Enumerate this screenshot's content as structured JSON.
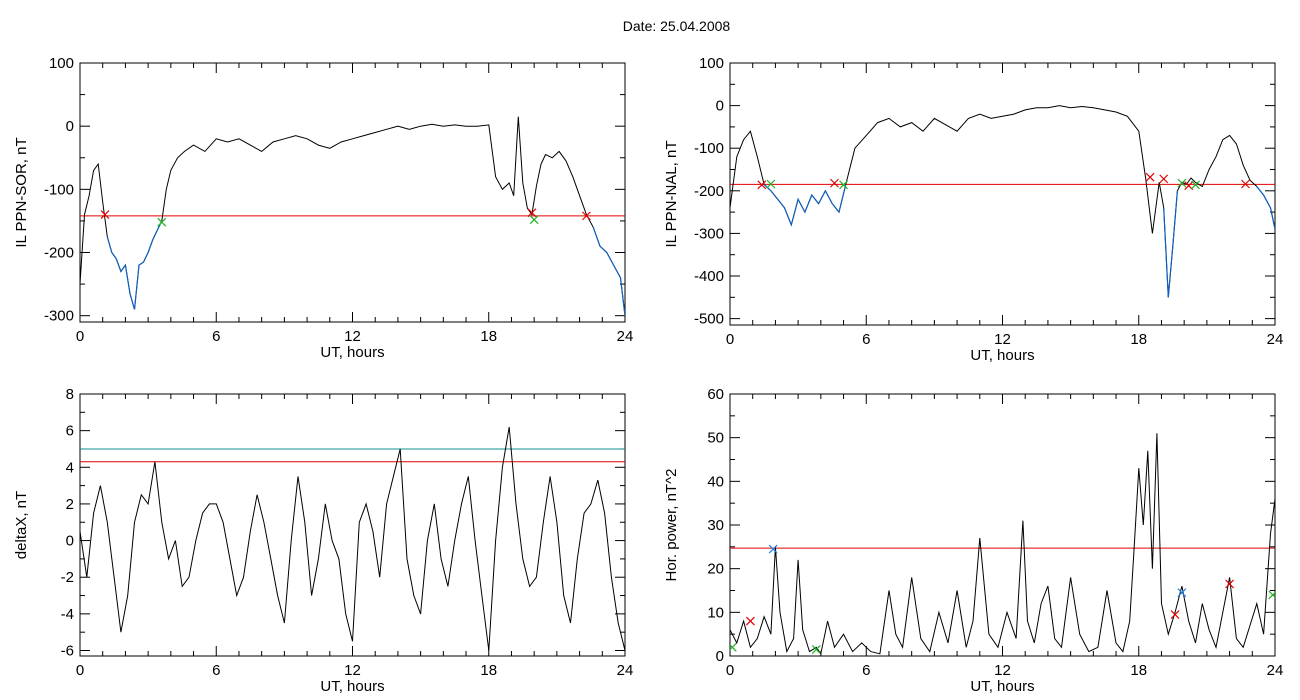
{
  "title": "Date:  25.04.2008",
  "colors": {
    "trace": "#000000",
    "below_threshold": "#1060c0",
    "threshold": "#e00000",
    "upper_threshold": "#109090",
    "mark_red": "#e00000",
    "mark_green": "#20b020",
    "mark_blue": "#2080e0"
  },
  "chart_data": [
    {
      "id": "il-sor",
      "type": "line",
      "xlabel": "UT, hours",
      "ylabel": "IL PPN-SOR, nT",
      "xlim": [
        0,
        24
      ],
      "ylim": [
        -310,
        100
      ],
      "xticks": [
        0,
        6,
        12,
        18,
        24
      ],
      "yticks": [
        -300,
        -200,
        -100,
        0,
        100
      ],
      "threshold": -142,
      "series": [
        {
          "x": [
            0,
            0.2,
            0.4,
            0.6,
            0.8,
            1.0,
            1.2,
            1.4,
            1.6,
            1.8,
            2.0,
            2.2,
            2.4,
            2.6,
            2.8,
            3.0,
            3.2,
            3.4,
            3.6,
            3.8,
            4.0,
            4.3,
            4.6,
            5.0,
            5.5,
            6.0,
            6.5,
            7.0,
            7.5,
            8.0,
            8.5,
            9.0,
            9.5,
            10.0,
            10.5,
            11.0,
            11.5,
            12.0,
            12.5,
            13.0,
            13.5,
            14.0,
            14.5,
            15.0,
            15.5,
            16.0,
            16.5,
            17.0,
            17.5,
            18.0,
            18.3,
            18.6,
            18.9,
            19.1,
            19.3,
            19.5,
            19.7,
            19.9,
            20.1,
            20.3,
            20.5,
            20.8,
            21.1,
            21.4,
            21.7,
            22.0,
            22.3,
            22.6,
            22.9,
            23.2,
            23.5,
            23.8,
            24.0
          ],
          "y": [
            -250,
            -140,
            -110,
            -70,
            -60,
            -120,
            -175,
            -200,
            -210,
            -230,
            -220,
            -265,
            -290,
            -220,
            -215,
            -200,
            -180,
            -165,
            -150,
            -100,
            -70,
            -50,
            -40,
            -30,
            -40,
            -20,
            -25,
            -20,
            -30,
            -40,
            -25,
            -20,
            -15,
            -20,
            -30,
            -35,
            -25,
            -20,
            -15,
            -10,
            -5,
            0,
            -5,
            0,
            3,
            0,
            2,
            0,
            0,
            2,
            -80,
            -100,
            -90,
            -110,
            15,
            -90,
            -130,
            -140,
            -95,
            -60,
            -45,
            -50,
            -40,
            -55,
            -80,
            -110,
            -140,
            -160,
            -190,
            -200,
            -220,
            -240,
            -300
          ]
        }
      ],
      "marks": [
        {
          "x": 1.1,
          "y": -140,
          "color": "red"
        },
        {
          "x": 3.6,
          "y": -152,
          "color": "green"
        },
        {
          "x": 19.9,
          "y": -137,
          "color": "red"
        },
        {
          "x": 20.0,
          "y": -148,
          "color": "green"
        },
        {
          "x": 22.3,
          "y": -142,
          "color": "red"
        }
      ]
    },
    {
      "id": "il-nal",
      "type": "line",
      "xlabel": "UT, hours",
      "ylabel": "IL PPN-NAL, nT",
      "xlim": [
        0,
        24
      ],
      "ylim": [
        -515,
        100
      ],
      "xticks": [
        0,
        6,
        12,
        18,
        24
      ],
      "yticks": [
        -500,
        -400,
        -300,
        -200,
        -100,
        0,
        100
      ],
      "threshold": -185,
      "series": [
        {
          "x": [
            0,
            0.3,
            0.6,
            0.9,
            1.2,
            1.5,
            1.8,
            2.1,
            2.4,
            2.7,
            3.0,
            3.3,
            3.6,
            3.9,
            4.2,
            4.5,
            4.8,
            5.1,
            5.5,
            6.0,
            6.5,
            7.0,
            7.5,
            8.0,
            8.5,
            9.0,
            9.5,
            10.0,
            10.5,
            11.0,
            11.5,
            12.0,
            12.5,
            13.0,
            13.5,
            14.0,
            14.5,
            15.0,
            15.5,
            16.0,
            16.5,
            17.0,
            17.5,
            18.0,
            18.3,
            18.6,
            18.9,
            19.1,
            19.3,
            19.5,
            19.7,
            19.9,
            20.1,
            20.3,
            20.5,
            20.8,
            21.1,
            21.4,
            21.7,
            22.0,
            22.3,
            22.6,
            22.9,
            23.2,
            23.5,
            23.8,
            24.0
          ],
          "y": [
            -240,
            -120,
            -80,
            -60,
            -120,
            -185,
            -200,
            -220,
            -240,
            -280,
            -220,
            -250,
            -210,
            -230,
            -200,
            -230,
            -250,
            -185,
            -100,
            -70,
            -40,
            -30,
            -50,
            -40,
            -60,
            -30,
            -45,
            -60,
            -30,
            -20,
            -30,
            -25,
            -20,
            -10,
            -5,
            -5,
            0,
            -5,
            -2,
            -5,
            -10,
            -15,
            -25,
            -60,
            -170,
            -300,
            -180,
            -240,
            -450,
            -330,
            -200,
            -180,
            -185,
            -170,
            -180,
            -190,
            -150,
            -120,
            -80,
            -70,
            -90,
            -140,
            -175,
            -190,
            -210,
            -240,
            -290
          ]
        }
      ],
      "marks": [
        {
          "x": 1.4,
          "y": -186,
          "color": "red"
        },
        {
          "x": 1.8,
          "y": -184,
          "color": "green"
        },
        {
          "x": 4.6,
          "y": -182,
          "color": "red"
        },
        {
          "x": 5.0,
          "y": -186,
          "color": "green"
        },
        {
          "x": 18.5,
          "y": -168,
          "color": "red"
        },
        {
          "x": 19.1,
          "y": -172,
          "color": "red"
        },
        {
          "x": 19.9,
          "y": -182,
          "color": "green"
        },
        {
          "x": 20.2,
          "y": -188,
          "color": "red"
        },
        {
          "x": 20.5,
          "y": -186,
          "color": "green"
        },
        {
          "x": 22.7,
          "y": -184,
          "color": "red"
        }
      ]
    },
    {
      "id": "deltax",
      "type": "line",
      "xlabel": "UT, hours",
      "ylabel": "deltaX, nT",
      "xlim": [
        0,
        24
      ],
      "ylim": [
        -6.3,
        8
      ],
      "xticks": [
        0,
        6,
        12,
        18,
        24
      ],
      "yticks": [
        -6,
        -4,
        -2,
        0,
        2,
        4,
        6,
        8
      ],
      "threshold": 4.3,
      "threshold_upper": 5.0,
      "series": [
        {
          "x": [
            0,
            0.3,
            0.6,
            0.9,
            1.2,
            1.5,
            1.8,
            2.1,
            2.4,
            2.7,
            3.0,
            3.3,
            3.6,
            3.9,
            4.2,
            4.5,
            4.8,
            5.1,
            5.4,
            5.7,
            6.0,
            6.3,
            6.6,
            6.9,
            7.2,
            7.5,
            7.8,
            8.1,
            8.4,
            8.7,
            9.0,
            9.3,
            9.6,
            9.9,
            10.2,
            10.5,
            10.8,
            11.1,
            11.4,
            11.7,
            12.0,
            12.3,
            12.6,
            12.9,
            13.2,
            13.5,
            13.8,
            14.1,
            14.4,
            14.7,
            15.0,
            15.3,
            15.6,
            15.9,
            16.2,
            16.5,
            16.8,
            17.1,
            17.4,
            17.7,
            18.0,
            18.3,
            18.6,
            18.9,
            19.2,
            19.5,
            19.8,
            20.1,
            20.4,
            20.7,
            21.0,
            21.3,
            21.6,
            21.9,
            22.2,
            22.5,
            22.8,
            23.1,
            23.4,
            23.7,
            24.0
          ],
          "y": [
            0.5,
            -2,
            1.5,
            3,
            1,
            -2,
            -5,
            -3,
            1,
            2.5,
            2,
            4.3,
            1,
            -1,
            0,
            -2.5,
            -2,
            0,
            1.5,
            2,
            2,
            1,
            -1,
            -3,
            -2,
            0.5,
            2.5,
            1,
            -1,
            -3,
            -4.5,
            0,
            3.5,
            1,
            -3,
            -1,
            2,
            0,
            -1,
            -4,
            -5.5,
            1,
            2,
            0.5,
            -2,
            2,
            3.5,
            5,
            -1,
            -3,
            -4,
            0,
            2,
            -1,
            -2.5,
            0,
            2,
            3.5,
            0,
            -3,
            -6,
            0,
            4,
            6.2,
            2,
            -1,
            -2.5,
            -2,
            1,
            3.5,
            1,
            -3,
            -4.5,
            -1,
            1.5,
            2,
            3.3,
            1.5,
            -2,
            -4.5,
            -6
          ]
        }
      ],
      "marks": []
    },
    {
      "id": "hor-power",
      "type": "line",
      "xlabel": "UT, hours",
      "ylabel": "Hor. power, nT^2",
      "xlim": [
        0,
        24
      ],
      "ylim": [
        0,
        60
      ],
      "xticks": [
        0,
        6,
        12,
        18,
        24
      ],
      "yticks": [
        0,
        10,
        20,
        30,
        40,
        50,
        60
      ],
      "threshold": 24.7,
      "series": [
        {
          "x": [
            0,
            0.3,
            0.6,
            0.9,
            1.2,
            1.5,
            1.8,
            2.0,
            2.2,
            2.5,
            2.8,
            3.0,
            3.2,
            3.5,
            3.8,
            4.0,
            4.3,
            4.6,
            5.0,
            5.4,
            5.8,
            6.2,
            6.6,
            7.0,
            7.3,
            7.6,
            8.0,
            8.4,
            8.8,
            9.2,
            9.6,
            10.0,
            10.4,
            10.7,
            11.0,
            11.4,
            11.8,
            12.2,
            12.6,
            12.9,
            13.1,
            13.4,
            13.7,
            14.0,
            14.3,
            14.6,
            15.0,
            15.4,
            15.8,
            16.2,
            16.6,
            17.0,
            17.3,
            17.6,
            17.8,
            18.0,
            18.2,
            18.4,
            18.6,
            18.8,
            19.0,
            19.3,
            19.6,
            19.9,
            20.2,
            20.5,
            20.8,
            21.1,
            21.4,
            21.7,
            22.0,
            22.3,
            22.6,
            22.9,
            23.2,
            23.5,
            23.8,
            24.0
          ],
          "y": [
            6,
            3,
            8,
            2,
            4,
            9,
            5,
            25,
            10,
            1,
            4,
            22,
            6,
            1,
            2,
            0.5,
            8,
            2,
            5,
            1,
            3,
            1,
            0.5,
            15,
            5,
            2,
            18,
            4,
            1,
            10,
            3,
            15,
            2,
            8,
            27,
            5,
            2,
            10,
            4,
            31,
            8,
            3,
            12,
            16,
            4,
            2,
            18,
            5,
            1,
            2,
            15,
            3,
            1,
            8,
            25,
            43,
            30,
            47,
            20,
            51,
            12,
            5,
            10,
            16,
            8,
            3,
            12,
            6,
            2,
            10,
            18,
            4,
            2,
            7,
            12,
            5,
            28,
            36
          ]
        }
      ],
      "marks": [
        {
          "x": 0.1,
          "y": 2,
          "color": "green"
        },
        {
          "x": 0.9,
          "y": 8,
          "color": "red"
        },
        {
          "x": 1.9,
          "y": 24.5,
          "color": "blue"
        },
        {
          "x": 3.8,
          "y": 1.5,
          "color": "green"
        },
        {
          "x": 19.6,
          "y": 9.5,
          "color": "red"
        },
        {
          "x": 19.9,
          "y": 14.5,
          "color": "blue"
        },
        {
          "x": 22.0,
          "y": 16.5,
          "color": "red"
        },
        {
          "x": 23.9,
          "y": 14,
          "color": "green"
        }
      ]
    }
  ]
}
